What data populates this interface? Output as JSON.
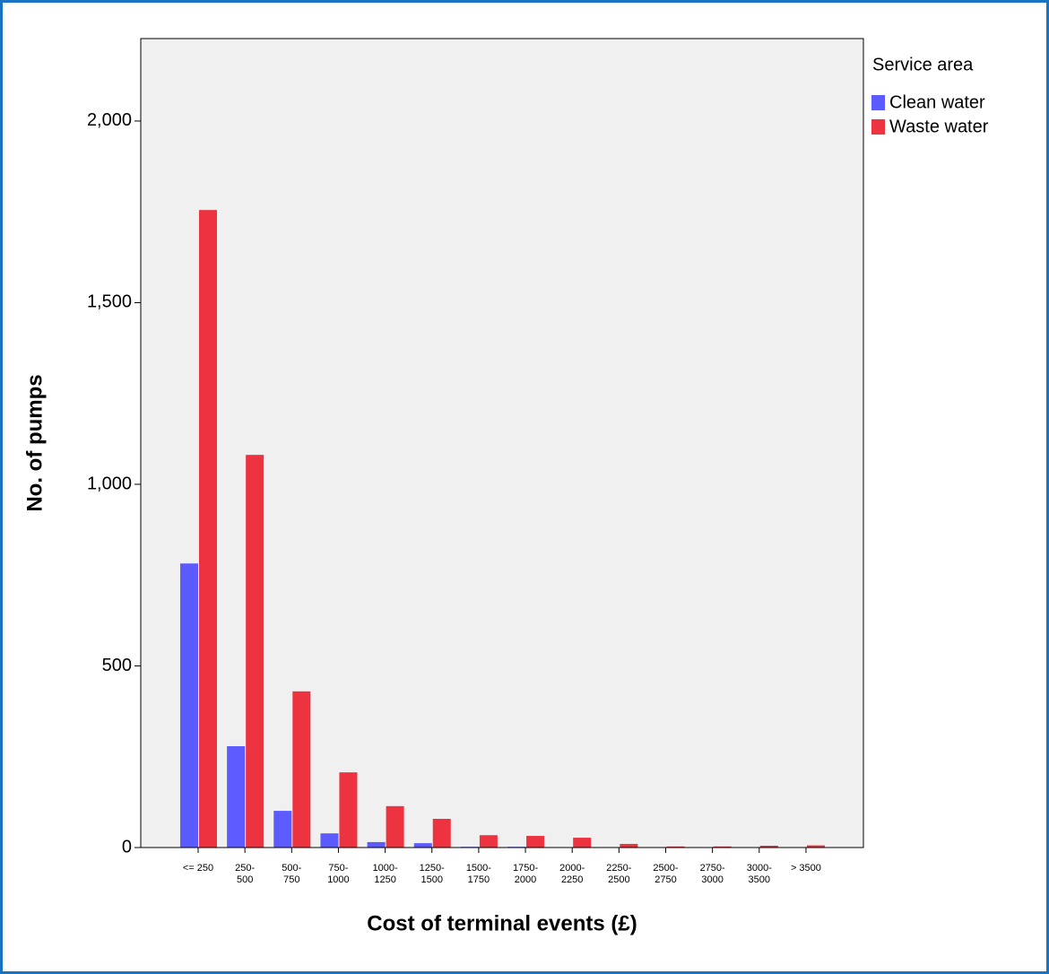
{
  "chart_data": {
    "type": "bar",
    "x_label": "Cost of terminal events (£)",
    "y_label": "No. of pumps",
    "legend_title": "Service area",
    "categories": [
      "<= 250",
      "250-\n500",
      "500-\n750",
      "750-\n1000",
      "1000-\n1250",
      "1250-\n1500",
      "1500-\n1750",
      "1750-\n2000",
      "2000-\n2250",
      "2250-\n2500",
      "2500-\n2750",
      "2750-\n3000",
      "3000-\n3500",
      "> 3500"
    ],
    "series": [
      {
        "name": "Clean water",
        "color": "#5b5bff",
        "values": [
          782,
          279,
          101,
          39,
          15,
          12,
          2,
          2,
          1,
          1,
          0,
          0,
          0,
          0
        ]
      },
      {
        "name": "Waste water",
        "color": "#ee3340",
        "values": [
          1755,
          1081,
          430,
          207,
          114,
          79,
          34,
          32,
          27,
          10,
          3,
          3,
          5,
          6
        ]
      }
    ],
    "ylim": [
      0,
      2227
    ],
    "yticks": [
      0,
      500,
      {
        "value": 1000,
        "label": "1,000"
      },
      {
        "value": 1500,
        "label": "1,500"
      },
      {
        "value": 2000,
        "label": "2,000"
      }
    ],
    "legend": "right"
  }
}
